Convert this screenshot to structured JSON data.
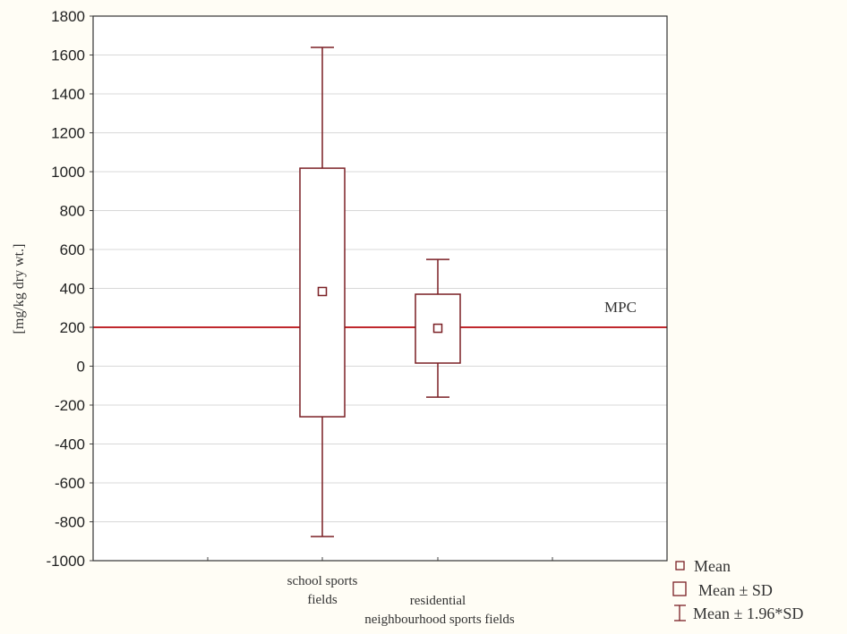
{
  "chart_data": {
    "type": "box",
    "title": "",
    "xlabel": "",
    "ylabel": "[mg/kg dry wt.]",
    "ylim": [
      -1000,
      1800
    ],
    "yticks": [
      1800,
      1600,
      1400,
      1200,
      1000,
      800,
      600,
      400,
      200,
      0,
      -200,
      -400,
      -600,
      -800,
      -1000
    ],
    "grid": true,
    "categories": [
      [
        "school sports",
        "fields"
      ],
      [
        "residential",
        "neighbourhood sports fields"
      ]
    ],
    "series": [
      {
        "name": "school sports fields",
        "mean": 384,
        "mean_minus_sd": -260,
        "mean_plus_sd": 1018,
        "mean_minus_1_96sd": -876,
        "mean_plus_1_96sd": 1639
      },
      {
        "name": "residential neighbourhood sports fields",
        "mean": 195,
        "mean_minus_sd": 16,
        "mean_plus_sd": 370,
        "mean_minus_1_96sd": -159,
        "mean_plus_1_96sd": 549
      }
    ],
    "reference_line": {
      "label": "MPC",
      "value": 200,
      "color": "#c0282d"
    },
    "legend": {
      "position": "bottom-right",
      "entries": [
        "Mean",
        "Mean ± SD",
        "Mean ± 1.96*SD"
      ]
    },
    "colors": {
      "box": "#7a1f24",
      "background": "#fffdf5",
      "plot_bg": "#ffffff",
      "grid": "#d8d8d8"
    }
  }
}
